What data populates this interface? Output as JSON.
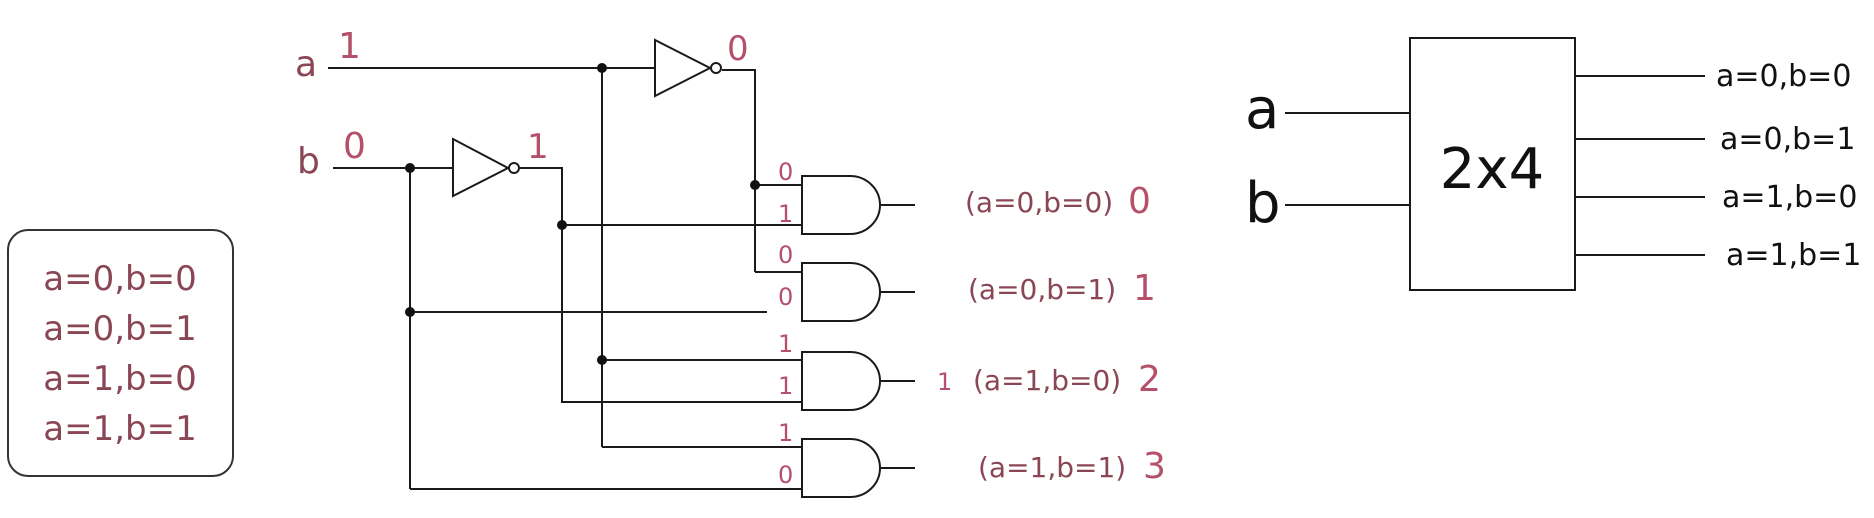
{
  "cases_box": {
    "lines": [
      "a=0,b=0",
      "a=0,b=1",
      "a=1,b=0",
      "a=1,b=1"
    ]
  },
  "circuit": {
    "input_a": {
      "label": "a",
      "value": "1"
    },
    "input_b": {
      "label": "b",
      "value": "0"
    },
    "not_a_output": "0",
    "not_b_output": "1",
    "gates": [
      {
        "in_top": "0",
        "in_bottom": "1",
        "output": "",
        "condition": "(a=0,b=0)",
        "index": "0"
      },
      {
        "in_top": "0",
        "in_bottom": "0",
        "output": "",
        "condition": "(a=0,b=1)",
        "index": "1"
      },
      {
        "in_top": "1",
        "in_bottom": "1",
        "output": "1",
        "condition": "(a=1,b=0)",
        "index": "2"
      },
      {
        "in_top": "1",
        "in_bottom": "0",
        "output": "",
        "condition": "(a=1,b=1)",
        "index": "3"
      }
    ]
  },
  "block": {
    "title": "2x4",
    "input_a": "a",
    "input_b": "b",
    "outputs": [
      "a=0,b=0",
      "a=0,b=1",
      "a=1,b=0",
      "a=1,b=1"
    ]
  },
  "colors": {
    "value_text": "#b5506a",
    "label_text": "#8a4655",
    "wire": "#1a1a1a"
  }
}
